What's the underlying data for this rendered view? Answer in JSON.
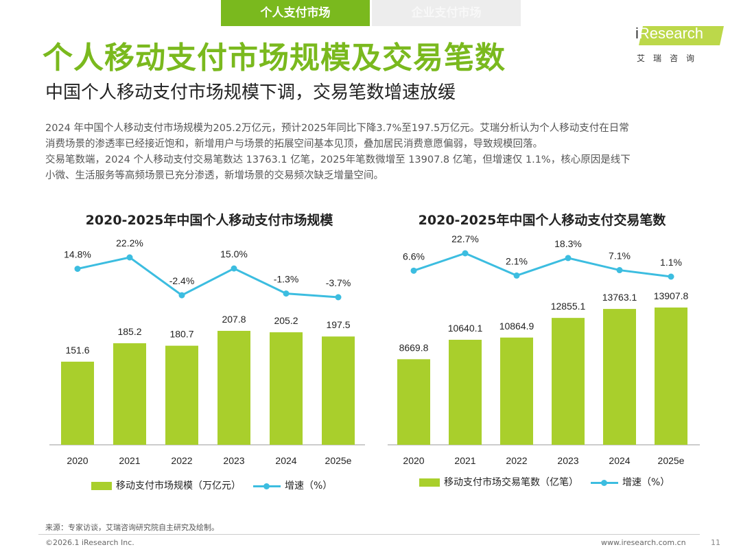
{
  "tabs": [
    {
      "label": "个人支付市场",
      "active": true
    },
    {
      "label": "企业支付市场",
      "active": false
    }
  ],
  "header": {
    "title": "个人移动支付市场规模及交易笔数",
    "subtitle": "中国个人移动支付市场规模下调，交易笔数增速放缓",
    "logo_text": "Research",
    "logo_i": "i",
    "logo_sub": "艾瑞咨询"
  },
  "paragraphs": [
    "2024 年中国个人移动支付市场规模为205.2万亿元，预计2025年同比下降3.7%至197.5万亿元。艾瑞分析认为个人移动支付在日常",
    "消费场景的渗透率已经接近饱和，新增用户与场景的拓展空间基本见顶，叠加居民消费意愿偏弱，导致规模回落。",
    "交易笔数端，2024 个人移动支付交易笔数达 13763.1 亿笔，2025年笔数微增至 13907.8 亿笔，但增速仅 1.1%，核心原因是线下",
    "小微、生活服务等高频场景已充分渗透，新增场景的交易频次缺乏增量空间。"
  ],
  "colors": {
    "brand": "#7ab91e",
    "bar": "#a9cf2c",
    "line": "#3cbde0"
  },
  "chart_data": [
    {
      "type": "bar",
      "title": "2020-2025年中国个人移动支付市场规模",
      "categories": [
        "2020",
        "2021",
        "2022",
        "2023",
        "2024",
        "2025e"
      ],
      "series": [
        {
          "name": "移动支付市场规模（万亿元）",
          "type": "bar",
          "values": [
            151.6,
            185.2,
            180.7,
            207.8,
            205.2,
            197.5
          ],
          "labels": [
            "151.6",
            "185.2",
            "180.7",
            "207.8",
            "205.2",
            "197.5"
          ]
        },
        {
          "name": "增速（%）",
          "type": "line",
          "values": [
            14.8,
            22.2,
            -2.4,
            15.0,
            -1.3,
            -3.7
          ],
          "labels": [
            "14.8%",
            "22.2%",
            "-2.4%",
            "15.0%",
            "-1.3%",
            "-3.7%"
          ]
        }
      ],
      "legend": "bottom"
    },
    {
      "type": "bar",
      "title": "2020-2025年中国个人移动支付交易笔数",
      "categories": [
        "2020",
        "2021",
        "2022",
        "2023",
        "2024",
        "2025e"
      ],
      "series": [
        {
          "name": "移动支付市场交易笔数（亿笔）",
          "type": "bar",
          "values": [
            8669.8,
            10640.1,
            10864.9,
            12855.1,
            13763.1,
            13907.8
          ],
          "labels": [
            "8669.8",
            "10640.1",
            "10864.9",
            "12855.1",
            "13763.1",
            "13907.8"
          ]
        },
        {
          "name": "增速（%）",
          "type": "line",
          "values": [
            6.6,
            22.7,
            2.1,
            18.3,
            7.1,
            1.1
          ],
          "labels": [
            "6.6%",
            "22.7%",
            "2.1%",
            "18.3%",
            "7.1%",
            "1.1%"
          ]
        }
      ],
      "legend": "bottom"
    }
  ],
  "footer": {
    "source": "来源：专家访谈，艾瑞咨询研究院自主研究及绘制。",
    "copyright": "©2026.1 iResearch Inc.",
    "website": "www.iresearch.com.cn",
    "page": "11"
  }
}
